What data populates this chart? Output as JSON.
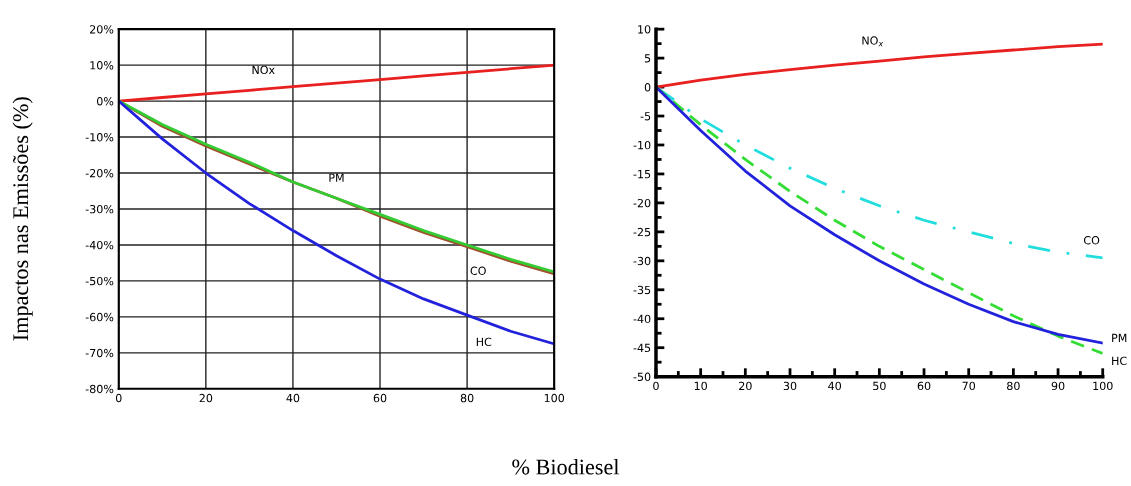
{
  "chart_data": [
    {
      "type": "line",
      "ylabel": "Impactos nas Emissões (%)",
      "xlabel": "% Biodiesel",
      "x": [
        0,
        10,
        20,
        30,
        40,
        50,
        60,
        70,
        80,
        90,
        100
      ],
      "series": [
        {
          "name": "NOx",
          "color": "#e82020",
          "values": [
            0,
            1,
            2,
            3,
            4,
            5,
            6,
            7,
            8,
            9,
            10
          ]
        },
        {
          "name": "CO",
          "color": "#a0522d",
          "values": [
            0,
            -7,
            -12.5,
            -17.5,
            -22.5,
            -27,
            -32,
            -36.5,
            -40.5,
            -44.5,
            -48
          ]
        },
        {
          "name": "PM",
          "color": "#33cc33",
          "values": [
            0,
            -6.5,
            -12,
            -17,
            -22.5,
            -27,
            -31.5,
            -36,
            -40,
            -44,
            -47.5
          ]
        },
        {
          "name": "HC",
          "color": "#2222dd",
          "values": [
            0,
            -10.5,
            -20,
            -28.5,
            -36,
            -43,
            -49.5,
            -55,
            -59.5,
            -64,
            -67.5
          ]
        }
      ],
      "xlim": [
        0,
        100
      ],
      "xticks": [
        0,
        20,
        40,
        60,
        80,
        100
      ],
      "ylim": [
        -80,
        20
      ],
      "yticks": [
        {
          "value": -80,
          "label": "-80%"
        },
        {
          "value": -70,
          "label": "-70%"
        },
        {
          "value": -60,
          "label": "-60%"
        },
        {
          "value": -50,
          "label": "-50%"
        },
        {
          "value": -40,
          "label": "-40%"
        },
        {
          "value": -30,
          "label": "-30%"
        },
        {
          "value": -20,
          "label": "-20%"
        },
        {
          "value": -10,
          "label": "-10%"
        },
        {
          "value": 0,
          "label": "0%"
        },
        {
          "value": 10,
          "label": "10%"
        },
        {
          "value": 20,
          "label": "20%"
        }
      ],
      "grid": true,
      "line_style": "solid"
    },
    {
      "type": "line",
      "x": [
        0,
        10,
        20,
        30,
        40,
        50,
        60,
        70,
        80,
        90,
        100
      ],
      "series": [
        {
          "name": "NO$_{x}$",
          "color": "#e82020",
          "values": [
            0,
            1.2,
            2.2,
            3.0,
            3.8,
            4.5,
            5.2,
            5.8,
            6.4,
            7.0,
            7.4
          ]
        },
        {
          "name": "CO",
          "color": "#22dddd",
          "values": [
            0,
            -5.5,
            -10,
            -14,
            -17.5,
            -20.5,
            -23,
            -25,
            -27,
            -28.5,
            -29.5
          ],
          "line_style": "dashdot"
        },
        {
          "name": "HC",
          "color": "#33dd33",
          "values": [
            0,
            -6.5,
            -12.5,
            -18,
            -23,
            -27.5,
            -31.5,
            -35.5,
            -39.5,
            -43,
            -46
          ],
          "line_style": "dashed"
        },
        {
          "name": "PM",
          "color": "#2222dd",
          "values": [
            0,
            -7.5,
            -14.5,
            -20.5,
            -25.5,
            -30,
            -34,
            -37.5,
            -40.5,
            -42.7,
            -44.2
          ]
        }
      ],
      "xlim": [
        0,
        100
      ],
      "xticks": [
        0,
        10,
        20,
        30,
        40,
        50,
        60,
        70,
        80,
        90,
        100
      ],
      "ylim": [
        -50,
        10
      ],
      "yticks": [
        -50,
        -45,
        -40,
        -35,
        -30,
        -25,
        -20,
        -15,
        -10,
        -5,
        0,
        5,
        10
      ],
      "grid": false,
      "line_style": "solid"
    }
  ]
}
